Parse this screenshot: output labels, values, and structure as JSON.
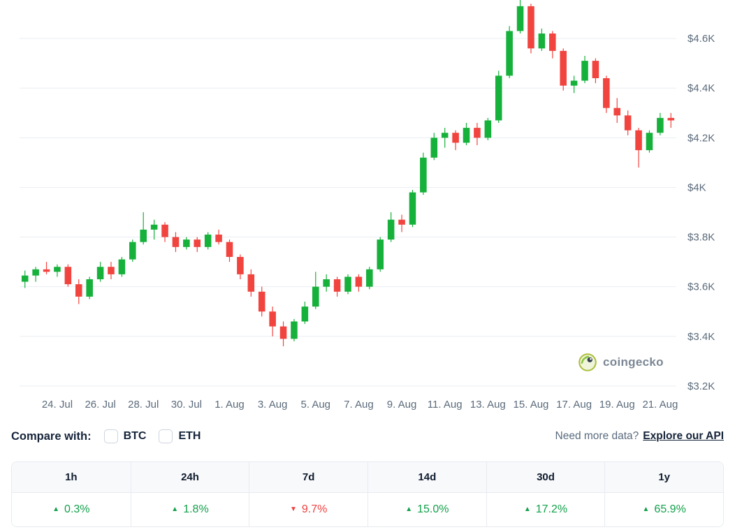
{
  "chart_data": {
    "type": "candlestick",
    "watermark": "coingecko",
    "y_axis": {
      "ticks": [
        4600,
        4400,
        4200,
        4000,
        3800,
        3600,
        3400,
        3200
      ],
      "labels": [
        "$4.6K",
        "$4.4K",
        "$4.2K",
        "$4K",
        "$3.8K",
        "$3.6K",
        "$3.4K",
        "$3.2K"
      ],
      "price_max": 4755,
      "price_min": 3180
    },
    "x_labels": [
      "24. Jul",
      "26. Jul",
      "28. Jul",
      "30. Jul",
      "1. Aug",
      "3. Aug",
      "5. Aug",
      "7. Aug",
      "9. Aug",
      "11. Aug",
      "13. Aug",
      "15. Aug",
      "17. Aug",
      "19. Aug",
      "21. Aug"
    ],
    "x_label_first_candle": 3,
    "x_label_candle_interval": 4,
    "candles": [
      [
        3620,
        3665,
        3595,
        3645
      ],
      [
        3645,
        3680,
        3620,
        3670
      ],
      [
        3670,
        3700,
        3650,
        3660
      ],
      [
        3660,
        3690,
        3640,
        3680
      ],
      [
        3680,
        3690,
        3600,
        3610
      ],
      [
        3610,
        3630,
        3530,
        3560
      ],
      [
        3560,
        3640,
        3550,
        3630
      ],
      [
        3630,
        3700,
        3620,
        3680
      ],
      [
        3680,
        3700,
        3630,
        3650
      ],
      [
        3650,
        3720,
        3640,
        3710
      ],
      [
        3710,
        3790,
        3700,
        3780
      ],
      [
        3780,
        3900,
        3770,
        3830
      ],
      [
        3830,
        3870,
        3790,
        3850
      ],
      [
        3850,
        3860,
        3780,
        3800
      ],
      [
        3800,
        3820,
        3740,
        3760
      ],
      [
        3760,
        3800,
        3750,
        3790
      ],
      [
        3790,
        3800,
        3740,
        3760
      ],
      [
        3760,
        3820,
        3750,
        3810
      ],
      [
        3810,
        3830,
        3770,
        3780
      ],
      [
        3780,
        3790,
        3700,
        3720
      ],
      [
        3720,
        3730,
        3630,
        3650
      ],
      [
        3650,
        3670,
        3560,
        3580
      ],
      [
        3580,
        3600,
        3480,
        3500
      ],
      [
        3500,
        3520,
        3400,
        3440
      ],
      [
        3440,
        3460,
        3360,
        3390
      ],
      [
        3390,
        3470,
        3380,
        3460
      ],
      [
        3460,
        3540,
        3450,
        3520
      ],
      [
        3520,
        3660,
        3510,
        3600
      ],
      [
        3600,
        3650,
        3580,
        3630
      ],
      [
        3630,
        3640,
        3560,
        3580
      ],
      [
        3580,
        3650,
        3570,
        3640
      ],
      [
        3640,
        3650,
        3580,
        3600
      ],
      [
        3600,
        3680,
        3590,
        3670
      ],
      [
        3670,
        3800,
        3660,
        3790
      ],
      [
        3790,
        3900,
        3780,
        3870
      ],
      [
        3870,
        3890,
        3820,
        3850
      ],
      [
        3850,
        3990,
        3840,
        3980
      ],
      [
        3980,
        4140,
        3970,
        4120
      ],
      [
        4120,
        4220,
        4110,
        4200
      ],
      [
        4200,
        4240,
        4160,
        4220
      ],
      [
        4220,
        4230,
        4150,
        4180
      ],
      [
        4180,
        4260,
        4170,
        4240
      ],
      [
        4240,
        4260,
        4170,
        4200
      ],
      [
        4200,
        4280,
        4190,
        4270
      ],
      [
        4270,
        4470,
        4260,
        4450
      ],
      [
        4450,
        4650,
        4440,
        4630
      ],
      [
        4630,
        4760,
        4620,
        4730
      ],
      [
        4730,
        4740,
        4540,
        4560
      ],
      [
        4560,
        4640,
        4550,
        4620
      ],
      [
        4620,
        4630,
        4520,
        4550
      ],
      [
        4550,
        4560,
        4390,
        4410
      ],
      [
        4410,
        4450,
        4380,
        4430
      ],
      [
        4430,
        4530,
        4420,
        4510
      ],
      [
        4510,
        4520,
        4420,
        4440
      ],
      [
        4440,
        4450,
        4300,
        4320
      ],
      [
        4320,
        4360,
        4260,
        4290
      ],
      [
        4290,
        4310,
        4210,
        4230
      ],
      [
        4230,
        4240,
        4080,
        4150
      ],
      [
        4150,
        4230,
        4140,
        4220
      ],
      [
        4220,
        4300,
        4210,
        4280
      ],
      [
        4280,
        4300,
        4240,
        4270
      ]
    ],
    "colors": {
      "up": "#16b13b",
      "down": "#f1443f",
      "grid": "#e9edf2",
      "axis_text": "#5b6b7b"
    }
  },
  "compare": {
    "label": "Compare with:",
    "options": [
      {
        "label": "BTC",
        "checked": false
      },
      {
        "label": "ETH",
        "checked": false
      }
    ],
    "more_data_text": "Need more data?",
    "api_link": "Explore our API"
  },
  "stats": {
    "columns": [
      "1h",
      "24h",
      "7d",
      "14d",
      "30d",
      "1y"
    ],
    "values": [
      {
        "value": "0.3%",
        "direction": "up"
      },
      {
        "value": "1.8%",
        "direction": "up"
      },
      {
        "value": "9.7%",
        "direction": "down"
      },
      {
        "value": "15.0%",
        "direction": "up"
      },
      {
        "value": "17.2%",
        "direction": "up"
      },
      {
        "value": "65.9%",
        "direction": "up"
      }
    ]
  }
}
